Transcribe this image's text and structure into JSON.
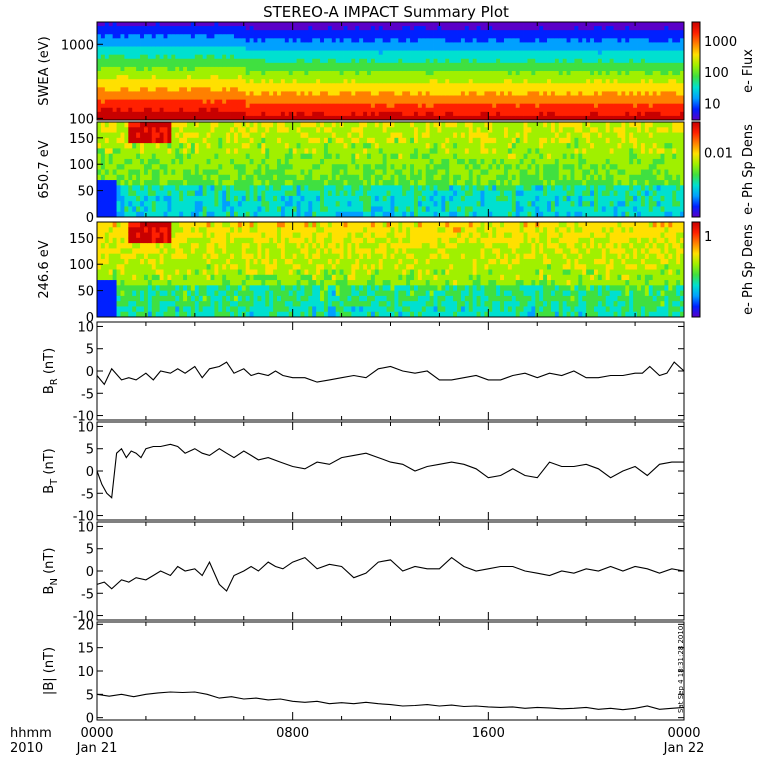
{
  "title": "STEREO-A IMPACT Summary Plot",
  "side_stamp": "Sat Sep  4 18:31:28 2010",
  "x_axis": {
    "corner_label_1": "hhmm",
    "corner_label_2": "2010",
    "ticks": [
      {
        "hour": 0,
        "label": "0000",
        "date": "Jan 21"
      },
      {
        "hour": 8,
        "label": "0800",
        "date": ""
      },
      {
        "hour": 16,
        "label": "1600",
        "date": ""
      },
      {
        "hour": 24,
        "label": "0000",
        "date": "Jan 22"
      }
    ]
  },
  "colors": {
    "colorscale": [
      "#5a00c8",
      "#0020ff",
      "#00a0ff",
      "#00e0d0",
      "#40e040",
      "#a0f000",
      "#ffe000",
      "#ff8000",
      "#ff2000",
      "#c80000"
    ],
    "line": "#000000"
  },
  "chart_data": [
    {
      "type": "heatmap",
      "name": "swea",
      "ylabel": "SWEA (eV)",
      "yscale": "log",
      "ylim": [
        95,
        2000
      ],
      "ytick_labels": [
        {
          "v": 100,
          "t": "100"
        },
        {
          "v": 1000,
          "t": "1000"
        }
      ],
      "colorbar": {
        "label": "e- Flux",
        "scale": "log",
        "range": [
          3,
          4000
        ],
        "ticks": [
          {
            "v": 10,
            "t": "10"
          },
          {
            "v": 100,
            "t": "100"
          },
          {
            "v": 1000,
            "t": "1000"
          }
        ]
      },
      "description_levels": "flux decreasing with energy: red near 100 eV, green near 500 eV, blue above 1500 eV"
    },
    {
      "type": "heatmap",
      "name": "pad650",
      "ylabel": "650.7 eV",
      "ylim": [
        0,
        180
      ],
      "yticks": [
        0,
        50,
        100,
        150
      ],
      "colorbar": {
        "label": "e- Ph Sp Dens",
        "scale": "log",
        "range": [
          0.001,
          0.03
        ],
        "ticks": [
          {
            "v": 0.01,
            "t": "0.01"
          }
        ]
      }
    },
    {
      "type": "heatmap",
      "name": "pad246",
      "ylabel": "246.6 eV",
      "ylim": [
        0,
        180
      ],
      "yticks": [
        0,
        50,
        100,
        150
      ],
      "colorbar": {
        "label": "e- Ph Sp Dens",
        "scale": "log",
        "range": [
          0.1,
          1.5
        ],
        "ticks": [
          {
            "v": 1,
            "t": "1"
          }
        ]
      }
    },
    {
      "type": "line",
      "name": "br",
      "ylabel_main": "B",
      "ylabel_sub": "R",
      "ylabel_unit": " (nT)",
      "ylim": [
        -11,
        11
      ],
      "yticks": [
        -10,
        -5,
        0,
        5,
        10
      ],
      "x": [
        0,
        0.3,
        0.6,
        1,
        1.3,
        1.6,
        2,
        2.3,
        2.6,
        3,
        3.3,
        3.6,
        4,
        4.3,
        4.6,
        5,
        5.3,
        5.6,
        6,
        6.3,
        6.6,
        7,
        7.3,
        7.6,
        8,
        8.5,
        9,
        9.5,
        10,
        10.5,
        11,
        11.5,
        12,
        12.5,
        13,
        13.5,
        14,
        14.5,
        15,
        15.5,
        16,
        16.5,
        17,
        17.5,
        18,
        18.5,
        19,
        19.5,
        20,
        20.5,
        21,
        21.5,
        22,
        22.3,
        22.6,
        23,
        23.3,
        23.6,
        24
      ],
      "y": [
        -1,
        -3,
        0.5,
        -2,
        -1.5,
        -2,
        -0.5,
        -2,
        0,
        -0.5,
        0.5,
        -0.5,
        1,
        -1.5,
        0.5,
        1,
        2,
        -0.5,
        0.5,
        -1,
        -0.5,
        -1,
        0,
        -1,
        -1.5,
        -1.5,
        -2.5,
        -2,
        -1.5,
        -1,
        -1.5,
        0.5,
        1,
        0,
        -0.5,
        0,
        -2,
        -2,
        -1.5,
        -1,
        -2,
        -2,
        -1,
        -0.5,
        -1.5,
        -0.5,
        -1,
        0,
        -1.5,
        -1.5,
        -1,
        -1,
        -0.5,
        -0.5,
        1,
        -1,
        -0.5,
        2,
        0
      ]
    },
    {
      "type": "line",
      "name": "bt",
      "ylabel_main": "B",
      "ylabel_sub": "T",
      "ylabel_unit": " (nT)",
      "ylim": [
        -11,
        11
      ],
      "yticks": [
        -10,
        -5,
        0,
        5,
        10
      ],
      "x": [
        0,
        0.2,
        0.4,
        0.6,
        0.8,
        1,
        1.2,
        1.4,
        1.6,
        1.8,
        2,
        2.3,
        2.6,
        3,
        3.3,
        3.6,
        4,
        4.3,
        4.6,
        5,
        5.3,
        5.6,
        6,
        6.3,
        6.6,
        7,
        7.5,
        8,
        8.5,
        9,
        9.5,
        10,
        10.5,
        11,
        11.5,
        12,
        12.5,
        13,
        13.5,
        14,
        14.5,
        15,
        15.5,
        16,
        16.5,
        17,
        17.5,
        18,
        18.5,
        19,
        19.5,
        20,
        20.5,
        21,
        21.5,
        22,
        22.5,
        23,
        23.5,
        24
      ],
      "y": [
        0,
        -3,
        -5,
        -6,
        4,
        5,
        3,
        4.5,
        4,
        3,
        5,
        5.5,
        5.5,
        6,
        5.5,
        4,
        5,
        4,
        3.5,
        5,
        4,
        3,
        4.5,
        3.5,
        2.5,
        3,
        2,
        1,
        0.5,
        2,
        1.5,
        3,
        3.5,
        4,
        3,
        2,
        1.5,
        0,
        1,
        1.5,
        2,
        1.5,
        0.5,
        -1.5,
        -1,
        0.5,
        -1,
        -1.5,
        2,
        1,
        1,
        1.5,
        0.5,
        -1.5,
        0,
        1,
        -1,
        1.5,
        2,
        2
      ]
    },
    {
      "type": "line",
      "name": "bn",
      "ylabel_main": "B",
      "ylabel_sub": "N",
      "ylabel_unit": " (nT)",
      "ylim": [
        -11,
        11
      ],
      "yticks": [
        -10,
        -5,
        0,
        5,
        10
      ],
      "x": [
        0,
        0.3,
        0.6,
        1,
        1.3,
        1.6,
        2,
        2.3,
        2.6,
        3,
        3.3,
        3.6,
        4,
        4.3,
        4.6,
        5,
        5.3,
        5.6,
        6,
        6.3,
        6.6,
        7,
        7.3,
        7.6,
        8,
        8.5,
        9,
        9.5,
        10,
        10.5,
        11,
        11.5,
        12,
        12.5,
        13,
        13.5,
        14,
        14.5,
        15,
        15.5,
        16,
        16.5,
        17,
        17.5,
        18,
        18.5,
        19,
        19.5,
        20,
        20.5,
        21,
        21.5,
        22,
        22.5,
        23,
        23.5,
        24
      ],
      "y": [
        -3,
        -2.5,
        -4,
        -2,
        -2.5,
        -1.5,
        -2,
        -1,
        0,
        -1,
        1,
        0,
        0.5,
        -1,
        2,
        -3,
        -4.5,
        -1,
        0,
        1,
        0,
        2,
        1,
        0.5,
        2,
        3,
        0.5,
        1.5,
        1,
        -1.5,
        -0.5,
        2,
        2.5,
        0,
        1,
        0.5,
        0.5,
        3,
        1,
        0,
        0.5,
        1,
        1,
        0,
        -0.5,
        -1,
        0,
        -0.5,
        0.5,
        0,
        1,
        0,
        1,
        0.5,
        -0.5,
        0.5,
        0
      ]
    },
    {
      "type": "line",
      "name": "bmag",
      "ylabel_text": "|B| (nT)",
      "ylim": [
        -0.5,
        20.5
      ],
      "yticks": [
        0,
        5,
        10,
        15,
        20
      ],
      "x": [
        0,
        0.5,
        1,
        1.5,
        2,
        2.5,
        3,
        3.5,
        4,
        4.5,
        5,
        5.5,
        6,
        6.5,
        7,
        7.5,
        8,
        8.5,
        9,
        9.5,
        10,
        10.5,
        11,
        11.5,
        12,
        12.5,
        13,
        13.5,
        14,
        14.5,
        15,
        15.5,
        16,
        16.5,
        17,
        17.5,
        18,
        18.5,
        19,
        19.5,
        20,
        20.5,
        21,
        21.5,
        22,
        22.5,
        23,
        23.5,
        24
      ],
      "y": [
        5,
        4.6,
        5,
        4.5,
        5,
        5.3,
        5.5,
        5.4,
        5.5,
        5,
        4.2,
        4.5,
        4,
        4.2,
        3.8,
        4,
        3.5,
        3.3,
        3.5,
        3,
        3.2,
        3,
        3.3,
        3,
        2.8,
        2.5,
        2.6,
        2.8,
        2.5,
        2.7,
        2.4,
        2.5,
        2.3,
        2.2,
        2.3,
        2,
        2.2,
        2.1,
        1.9,
        2,
        2.2,
        1.8,
        2,
        1.7,
        2,
        2.5,
        1.8,
        2,
        2.2
      ]
    }
  ]
}
